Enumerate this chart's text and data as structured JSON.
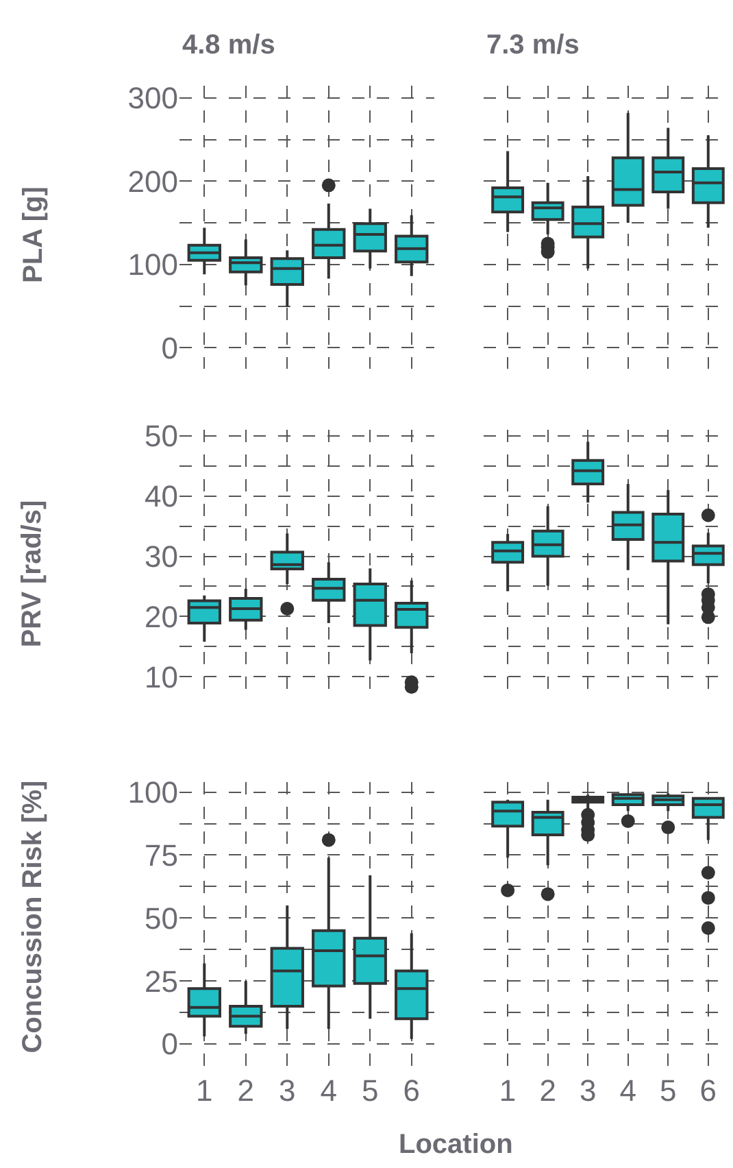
{
  "chart_data": [
    {
      "type": "box",
      "title": "4.8 m/s",
      "ylabel": "PLA [g]",
      "categories": [
        "1",
        "2",
        "3",
        "4",
        "5",
        "6"
      ],
      "ylim": [
        -25,
        315
      ],
      "yticks": [
        0,
        100,
        200,
        300
      ],
      "grid": true,
      "tick_labels": "y",
      "series": [
        {
          "color": "#1fbfc4",
          "boxes": [
            {
              "low": 88,
              "q1": 105,
              "median": 114,
              "q3": 123,
              "high": 144
            },
            {
              "low": 75,
              "q1": 91,
              "median": 102,
              "q3": 108,
              "high": 130
            },
            {
              "low": 49,
              "q1": 76,
              "median": 95,
              "q3": 107,
              "high": 117
            },
            {
              "low": 83,
              "q1": 108,
              "median": 123,
              "q3": 142,
              "high": 173,
              "outliers": [
                195
              ]
            },
            {
              "low": 95,
              "q1": 116,
              "median": 136,
              "q3": 149,
              "high": 167
            },
            {
              "low": 86,
              "q1": 103,
              "median": 119,
              "q3": 134,
              "high": 159
            }
          ]
        }
      ]
    },
    {
      "type": "box",
      "title": "7.3 m/s",
      "categories": [
        "1",
        "2",
        "3",
        "4",
        "5",
        "6"
      ],
      "ylim": [
        -25,
        315
      ],
      "yticks": [
        0,
        100,
        200,
        300
      ],
      "grid": true,
      "tick_labels": false,
      "series": [
        {
          "color": "#1fbfc4",
          "boxes": [
            {
              "low": 139,
              "q1": 163,
              "median": 181,
              "q3": 192,
              "high": 236
            },
            {
              "low": 136,
              "q1": 154,
              "median": 168,
              "q3": 174,
              "high": 198,
              "outliers": [
                125,
                121,
                115
              ]
            },
            {
              "low": 95,
              "q1": 133,
              "median": 149,
              "q3": 169,
              "high": 206
            },
            {
              "low": 150,
              "q1": 171,
              "median": 190,
              "q3": 228,
              "high": 282
            },
            {
              "low": 167,
              "q1": 187,
              "median": 211,
              "q3": 228,
              "high": 264
            },
            {
              "low": 144,
              "q1": 174,
              "median": 198,
              "q3": 215,
              "high": 255
            }
          ]
        }
      ]
    },
    {
      "type": "box",
      "ylabel": "PRV [rad/s]",
      "categories": [
        "1",
        "2",
        "3",
        "4",
        "5",
        "6"
      ],
      "ylim": [
        6,
        51
      ],
      "yticks": [
        10,
        20,
        30,
        40,
        50
      ],
      "grid": true,
      "tick_labels": "y",
      "series": [
        {
          "color": "#1fbfc4",
          "boxes": [
            {
              "low": 15.8,
              "q1": 18.9,
              "median": 21.5,
              "q3": 22.6,
              "high": 23.5
            },
            {
              "low": 17.8,
              "q1": 19.4,
              "median": 21.3,
              "q3": 23.0,
              "high": 24.6
            },
            {
              "low": 25.4,
              "q1": 27.9,
              "median": 28.6,
              "q3": 30.7,
              "high": 33.8,
              "outliers": [
                21.3
              ]
            },
            {
              "low": 18.9,
              "q1": 22.7,
              "median": 24.7,
              "q3": 26.2,
              "high": 29.0
            },
            {
              "low": 12.7,
              "q1": 18.5,
              "median": 22.7,
              "q3": 25.4,
              "high": 28.0
            },
            {
              "low": 13.9,
              "q1": 18.2,
              "median": 21.2,
              "q3": 22.2,
              "high": 26.0,
              "outliers": [
                9.1,
                8.3
              ]
            }
          ]
        }
      ]
    },
    {
      "type": "box",
      "categories": [
        "1",
        "2",
        "3",
        "4",
        "5",
        "6"
      ],
      "ylim": [
        6,
        51
      ],
      "yticks": [
        10,
        20,
        30,
        40,
        50
      ],
      "grid": true,
      "tick_labels": false,
      "series": [
        {
          "color": "#1fbfc4",
          "boxes": [
            {
              "low": 24.2,
              "q1": 29.0,
              "median": 30.9,
              "q3": 32.3,
              "high": 33.7
            },
            {
              "low": 25.1,
              "q1": 30.0,
              "median": 31.9,
              "q3": 34.2,
              "high": 38.3
            },
            {
              "low": 38.9,
              "q1": 42.0,
              "median": 44.2,
              "q3": 45.9,
              "high": 49.0
            },
            {
              "low": 27.7,
              "q1": 32.8,
              "median": 35.2,
              "q3": 37.3,
              "high": 42.0
            },
            {
              "low": 18.7,
              "q1": 29.2,
              "median": 32.3,
              "q3": 37.0,
              "high": 41.0
            },
            {
              "low": 25.5,
              "q1": 28.6,
              "median": 30.5,
              "q3": 31.7,
              "high": 33.9,
              "outliers": [
                36.8,
                23.7,
                22.7,
                21.5,
                19.9
              ]
            }
          ]
        }
      ]
    },
    {
      "type": "box",
      "ylabel": "Concussion Risk [%]",
      "xlabel": "Location",
      "categories": [
        "1",
        "2",
        "3",
        "4",
        "5",
        "6"
      ],
      "ylim": [
        -10,
        104
      ],
      "yticks": [
        0,
        25,
        50,
        75,
        100
      ],
      "grid": true,
      "series": [
        {
          "color": "#1fbfc4",
          "boxes": [
            {
              "low": 3,
              "q1": 11,
              "median": 14.5,
              "q3": 22,
              "high": 32
            },
            {
              "low": 4,
              "q1": 7,
              "median": 11,
              "q3": 15,
              "high": 25
            },
            {
              "low": 6,
              "q1": 15,
              "median": 29,
              "q3": 38,
              "high": 55
            },
            {
              "low": 6,
              "q1": 23,
              "median": 37,
              "q3": 45,
              "high": 74,
              "outliers": [
                81
              ]
            },
            {
              "low": 10,
              "q1": 24,
              "median": 35,
              "q3": 42,
              "high": 67
            },
            {
              "low": 2,
              "q1": 10,
              "median": 22,
              "q3": 29,
              "high": 44
            }
          ]
        }
      ]
    },
    {
      "type": "box",
      "categories": [
        "1",
        "2",
        "3",
        "4",
        "5",
        "6"
      ],
      "ylim": [
        -10,
        104
      ],
      "yticks": [
        0,
        25,
        50,
        75,
        100
      ],
      "grid": true,
      "tick_labels": "x",
      "series": [
        {
          "color": "#1fbfc4",
          "boxes": [
            {
              "low": 74,
              "q1": 86.5,
              "median": 92.5,
              "q3": 96,
              "high": 97,
              "outliers": [
                61
              ]
            },
            {
              "low": 71,
              "q1": 83,
              "median": 90,
              "q3": 92,
              "high": 97,
              "outliers": [
                59.5
              ]
            },
            {
              "low": 93.5,
              "q1": 96,
              "median": 97,
              "q3": 98,
              "high": 99,
              "outliers": [
                91,
                88,
                85,
                83
              ]
            },
            {
              "low": 92.5,
              "q1": 95,
              "median": 97.5,
              "q3": 99,
              "high": 99.5,
              "outliers": [
                88.5
              ]
            },
            {
              "low": 92.5,
              "q1": 95,
              "median": 97,
              "q3": 98.5,
              "high": 99.5,
              "outliers": [
                86
              ]
            },
            {
              "low": 81,
              "q1": 90,
              "median": 95,
              "q3": 97.5,
              "high": 98,
              "outliers": [
                68,
                58,
                46
              ]
            }
          ]
        }
      ]
    }
  ]
}
